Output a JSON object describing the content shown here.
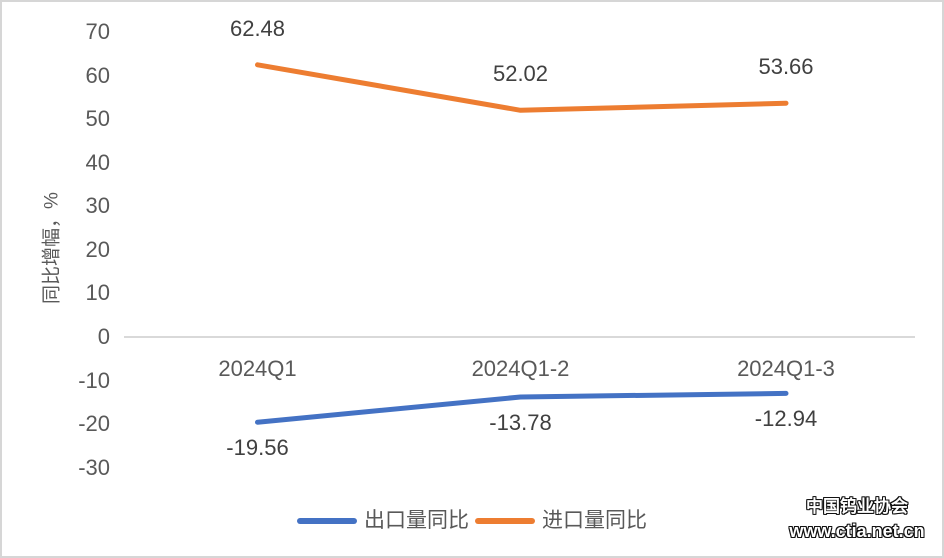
{
  "chart_data": {
    "type": "line",
    "categories": [
      "2024Q1",
      "2024Q1-2",
      "2024Q1-3"
    ],
    "series": [
      {
        "name": "出口量同比",
        "color": "#4472C4",
        "values": [
          -19.56,
          -13.78,
          -12.94
        ],
        "labels": [
          "-19.56",
          "-13.78",
          "-12.94"
        ]
      },
      {
        "name": "进口量同比",
        "color": "#ED7D31",
        "values": [
          62.48,
          52.02,
          53.66
        ],
        "labels": [
          "62.48",
          "52.02",
          "53.66"
        ]
      }
    ],
    "title": "",
    "xlabel": "",
    "ylabel": "同比增幅，%",
    "yticks": [
      70,
      60,
      50,
      40,
      30,
      20,
      10,
      0,
      -10,
      -20,
      -30
    ],
    "ylim": [
      -30,
      70
    ],
    "grid": false,
    "legend_position": "bottom"
  },
  "watermark": {
    "line1": "中国钨业协会",
    "line2": "www.ctia.net.cn"
  },
  "colors": {
    "export_series": "#4472C4",
    "import_series": "#ED7D31",
    "axis_text": "#595959",
    "data_label_text": "#404040",
    "axis_line": "#d9d9d9",
    "background": "#ffffff"
  }
}
